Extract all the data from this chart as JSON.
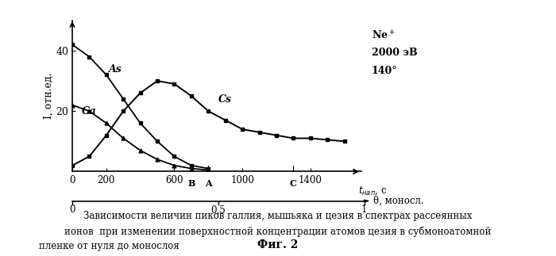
{
  "ylabel": "I, отн.ед.",
  "xlabel_top": "t_{нап}, с",
  "xlabel_bottom": "θ, моносл.",
  "xticks_top": [
    0,
    200,
    600,
    1000,
    1400
  ],
  "xticks_bottom": [
    0,
    0.5,
    1
  ],
  "xticks_bottom_labels": [
    "0",
    "0,5",
    "1"
  ],
  "yticks": [
    20,
    40
  ],
  "ylim": [
    0,
    50
  ],
  "xlim": [
    0,
    1700
  ],
  "As_x": [
    0,
    100,
    200,
    300,
    400,
    500,
    600,
    700,
    800
  ],
  "As_y": [
    42,
    38,
    32,
    24,
    16,
    10,
    5,
    2,
    1
  ],
  "Ga_x": [
    0,
    100,
    200,
    300,
    400,
    500,
    600,
    700,
    800
  ],
  "Ga_y": [
    22,
    20,
    16,
    11,
    7,
    4,
    2,
    1,
    0.5
  ],
  "Cs_x": [
    0,
    100,
    200,
    300,
    400,
    500,
    600,
    700,
    800,
    900,
    1000,
    1100,
    1200,
    1300,
    1400,
    1500,
    1600
  ],
  "Cs_y": [
    2,
    5,
    12,
    20,
    26,
    30,
    29,
    25,
    20,
    17,
    14,
    13,
    12,
    11,
    11,
    10.5,
    10
  ],
  "marker_B": 700,
  "marker_A": 800,
  "marker_C": 1300,
  "ne_annotation": [
    "Ne$^+$",
    "2000 эВ",
    "140°"
  ],
  "fig_caption1": "Зависимости величин пиков галлия, мышьяка и цезия в спектрах рассеянных",
  "fig_caption2": "ионов  при изменении поверхностной концентрации атомов цезия в субмоноатомной",
  "fig_caption3": "пленке от нуля до монослоя",
  "fig_label": "Фиг. 2",
  "background_color": "#ffffff"
}
